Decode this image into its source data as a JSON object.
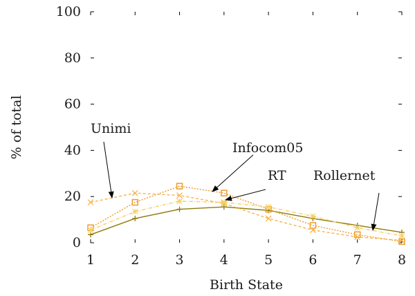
{
  "chart_data": {
    "type": "line",
    "title": "",
    "xlabel": "Birth State",
    "ylabel": "% of total",
    "x": [
      1,
      2,
      3,
      4,
      5,
      6,
      7,
      8
    ],
    "xlim": [
      1,
      8
    ],
    "ylim": [
      0,
      100
    ],
    "xticks": [
      "1",
      "2",
      "3",
      "4",
      "5",
      "6",
      "7",
      "8"
    ],
    "yticks": [
      "0",
      "20",
      "40",
      "60",
      "80",
      "100"
    ],
    "grid": false,
    "legend": "none",
    "series": [
      {
        "name": "Rollernet",
        "values": [
          3.5,
          10.5,
          14.5,
          15.5,
          14,
          10.5,
          7.5,
          4.5
        ],
        "color": "#8c7a0b",
        "marker": "plus",
        "dash": ""
      },
      {
        "name": "Infocom05",
        "values": [
          6.5,
          17.5,
          24.5,
          21.5,
          14.5,
          7.5,
          3.5,
          0.5
        ],
        "color": "#f09b2a",
        "marker": "square",
        "dash": "2,2"
      },
      {
        "name": "Unimi",
        "values": [
          17.5,
          21.5,
          20.5,
          17,
          10.5,
          5.5,
          2.5,
          1
        ],
        "color": "#f5b44a",
        "marker": "cross",
        "dash": "4,3"
      },
      {
        "name": "RT",
        "values": [
          5.5,
          13.5,
          18,
          17.5,
          15.5,
          11.5,
          6.5,
          3
        ],
        "color": "#f6cf62",
        "marker": "star",
        "dash": "5,2,1,2"
      }
    ],
    "annotations": [
      {
        "label": "Unimi",
        "target_series": "Unimi"
      },
      {
        "label": "Infocom05",
        "target_series": "Infocom05"
      },
      {
        "label": "RT",
        "target_series": "RT"
      },
      {
        "label": "Rollernet",
        "target_series": "Rollernet"
      }
    ]
  }
}
